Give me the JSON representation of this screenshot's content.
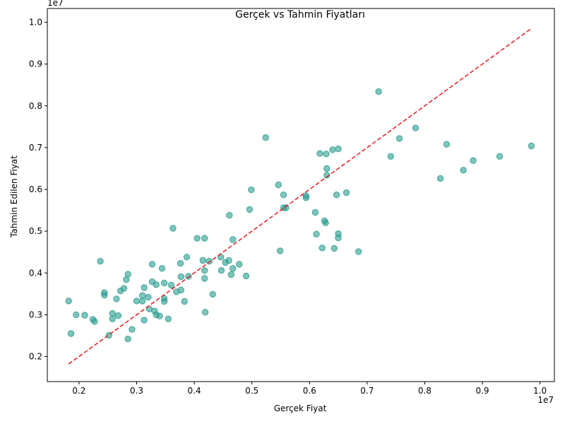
{
  "chart_data": {
    "type": "scatter",
    "title": "Gerçek vs Tahmin Fiyatları",
    "xlabel": "Gerçek Fiyat",
    "ylabel": "Tahmin Edilen Fiyat",
    "x_offset_label": "1e7",
    "y_offset_label": "1e7",
    "xlim": [
      0.145,
      1.025
    ],
    "ylim": [
      0.14,
      1.033
    ],
    "xticks": [
      0.2,
      0.3,
      0.4,
      0.5,
      0.6,
      0.7,
      0.8,
      0.9,
      1.0
    ],
    "xtick_labels": [
      "0.2",
      "0.3",
      "0.4",
      "0.5",
      "0.6",
      "0.7",
      "0.8",
      "0.9",
      "1.0"
    ],
    "yticks": [
      0.2,
      0.3,
      0.4,
      0.5,
      0.6,
      0.7,
      0.8,
      0.9,
      1.0
    ],
    "ytick_labels": [
      "0.2",
      "0.3",
      "0.4",
      "0.5",
      "0.6",
      "0.7",
      "0.8",
      "0.9",
      "1.0"
    ],
    "grid": false,
    "point_color": "#2a9d8f",
    "reference_line": {
      "x": [
        0.182,
        0.985
      ],
      "y": [
        0.182,
        0.985
      ],
      "color": "#e41a1c",
      "style": "dashed"
    },
    "points": [
      [
        0.182,
        0.333
      ],
      [
        0.186,
        0.255
      ],
      [
        0.195,
        0.3
      ],
      [
        0.21,
        0.299
      ],
      [
        0.224,
        0.289
      ],
      [
        0.227,
        0.284
      ],
      [
        0.237,
        0.428
      ],
      [
        0.244,
        0.353
      ],
      [
        0.244,
        0.347
      ],
      [
        0.252,
        0.251
      ],
      [
        0.258,
        0.303
      ],
      [
        0.258,
        0.29
      ],
      [
        0.265,
        0.338
      ],
      [
        0.268,
        0.298
      ],
      [
        0.272,
        0.357
      ],
      [
        0.278,
        0.363
      ],
      [
        0.282,
        0.384
      ],
      [
        0.285,
        0.397
      ],
      [
        0.285,
        0.242
      ],
      [
        0.292,
        0.265
      ],
      [
        0.3,
        0.333
      ],
      [
        0.31,
        0.346
      ],
      [
        0.31,
        0.333
      ],
      [
        0.313,
        0.365
      ],
      [
        0.313,
        0.287
      ],
      [
        0.32,
        0.342
      ],
      [
        0.322,
        0.314
      ],
      [
        0.327,
        0.421
      ],
      [
        0.327,
        0.379
      ],
      [
        0.331,
        0.309
      ],
      [
        0.334,
        0.372
      ],
      [
        0.334,
        0.3
      ],
      [
        0.34,
        0.297
      ],
      [
        0.344,
        0.411
      ],
      [
        0.348,
        0.376
      ],
      [
        0.348,
        0.339
      ],
      [
        0.348,
        0.332
      ],
      [
        0.355,
        0.29
      ],
      [
        0.36,
        0.371
      ],
      [
        0.363,
        0.507
      ],
      [
        0.369,
        0.355
      ],
      [
        0.376,
        0.423
      ],
      [
        0.377,
        0.391
      ],
      [
        0.377,
        0.359
      ],
      [
        0.383,
        0.332
      ],
      [
        0.387,
        0.438
      ],
      [
        0.39,
        0.392
      ],
      [
        0.405,
        0.483
      ],
      [
        0.415,
        0.43
      ],
      [
        0.418,
        0.483
      ],
      [
        0.418,
        0.406
      ],
      [
        0.418,
        0.387
      ],
      [
        0.419,
        0.306
      ],
      [
        0.426,
        0.428
      ],
      [
        0.432,
        0.349
      ],
      [
        0.446,
        0.438
      ],
      [
        0.447,
        0.406
      ],
      [
        0.454,
        0.425
      ],
      [
        0.46,
        0.43
      ],
      [
        0.461,
        0.538
      ],
      [
        0.464,
        0.396
      ],
      [
        0.467,
        0.48
      ],
      [
        0.467,
        0.411
      ],
      [
        0.478,
        0.421
      ],
      [
        0.49,
        0.393
      ],
      [
        0.496,
        0.552
      ],
      [
        0.499,
        0.599
      ],
      [
        0.524,
        0.724
      ],
      [
        0.546,
        0.611
      ],
      [
        0.549,
        0.453
      ],
      [
        0.555,
        0.587
      ],
      [
        0.555,
        0.556
      ],
      [
        0.559,
        0.556
      ],
      [
        0.594,
        0.585
      ],
      [
        0.594,
        0.58
      ],
      [
        0.61,
        0.545
      ],
      [
        0.612,
        0.493
      ],
      [
        0.618,
        0.686
      ],
      [
        0.622,
        0.46
      ],
      [
        0.626,
        0.525
      ],
      [
        0.628,
        0.52
      ],
      [
        0.629,
        0.685
      ],
      [
        0.63,
        0.65
      ],
      [
        0.63,
        0.634
      ],
      [
        0.64,
        0.695
      ],
      [
        0.643,
        0.459
      ],
      [
        0.647,
        0.587
      ],
      [
        0.65,
        0.697
      ],
      [
        0.65,
        0.494
      ],
      [
        0.65,
        0.484
      ],
      [
        0.664,
        0.592
      ],
      [
        0.685,
        0.451
      ],
      [
        0.72,
        0.834
      ],
      [
        0.741,
        0.679
      ],
      [
        0.756,
        0.722
      ],
      [
        0.784,
        0.747
      ],
      [
        0.827,
        0.626
      ],
      [
        0.838,
        0.708
      ],
      [
        0.867,
        0.646
      ],
      [
        0.884,
        0.669
      ],
      [
        0.93,
        0.679
      ],
      [
        0.985,
        0.704
      ]
    ]
  }
}
